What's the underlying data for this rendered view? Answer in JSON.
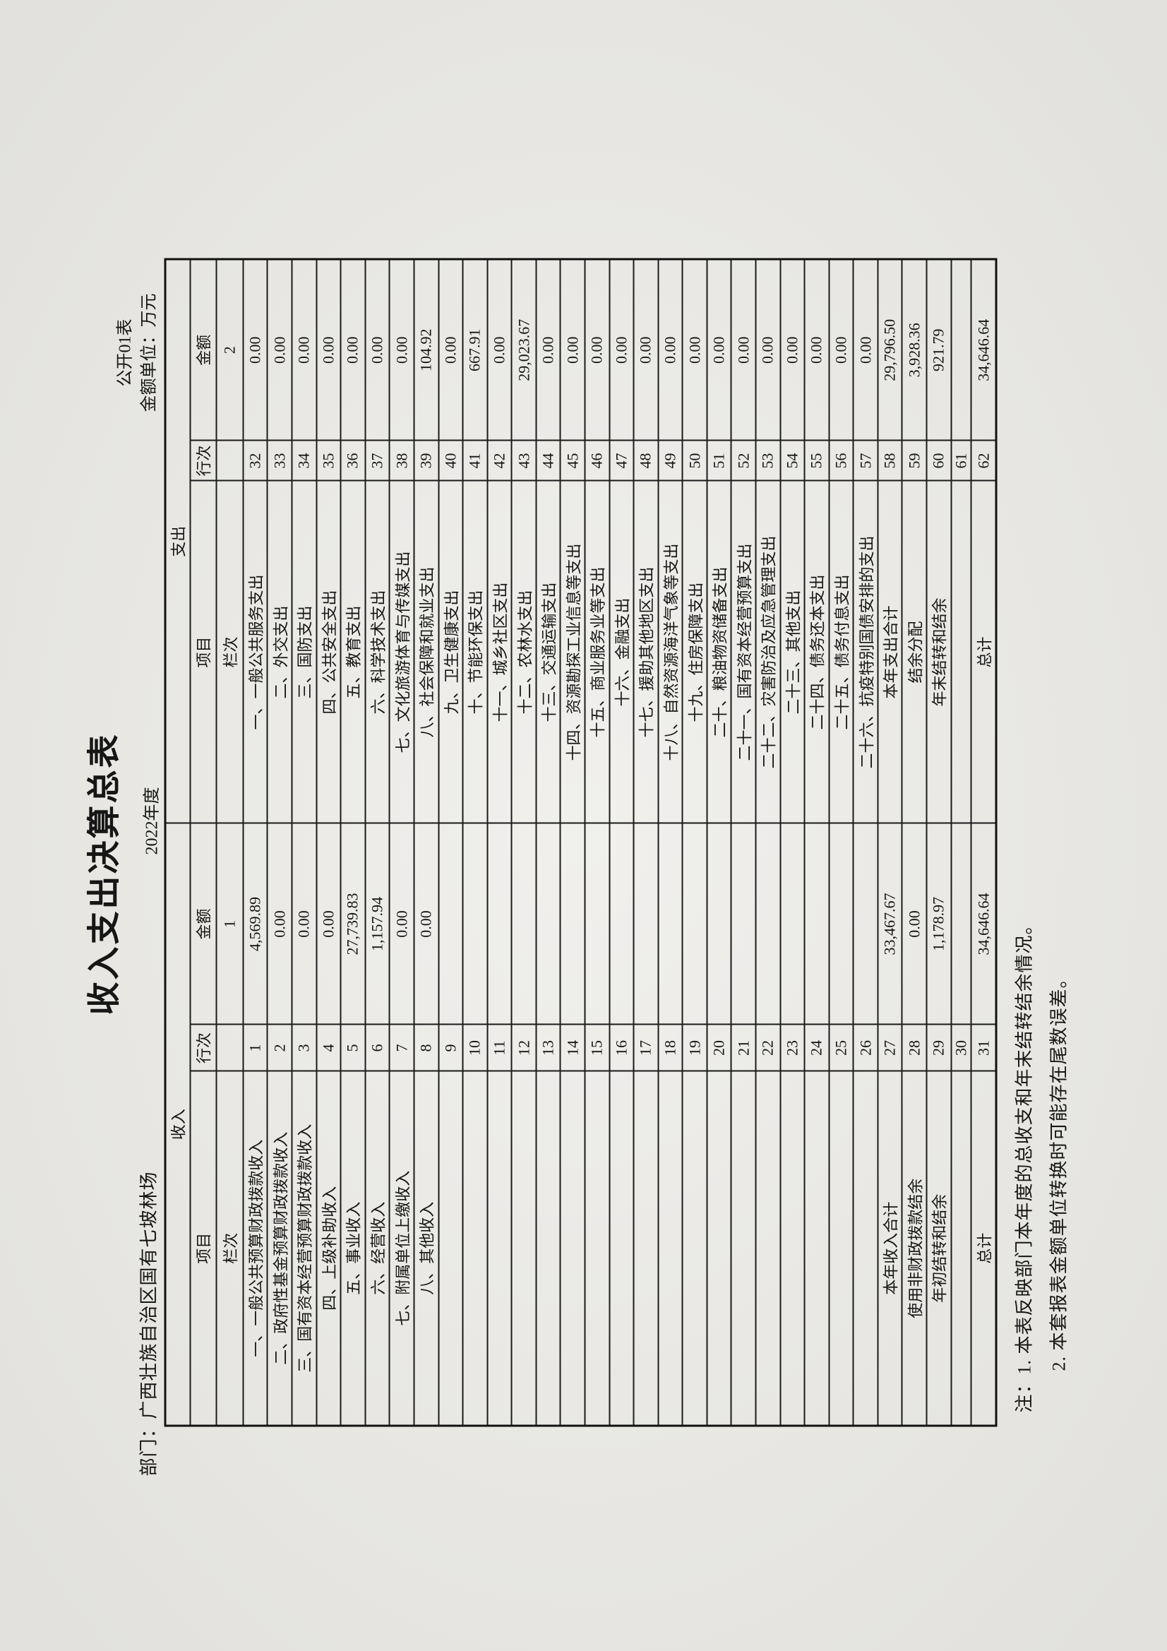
{
  "page": {
    "title": "收入支出决算总表",
    "table_code": "公开01表",
    "unit_label": "金额单位：万元",
    "department": "部门：广西壮族自治区国有七坡林场",
    "year": "2022年度",
    "notes": {
      "line1": "注：1. 本表反映部门本年度的总收支和年末结转结余情况。",
      "line2": "2. 本套报表金额单位转换时可能存在尾数误差。"
    }
  },
  "table": {
    "header": {
      "revenue": "收入",
      "expenditure": "支出",
      "item": "项目",
      "row_no": "行次",
      "amount": "金额",
      "col_index_label": "栏次",
      "revenue_amount_col_no": "1",
      "expenditure_amount_col_no": "2"
    },
    "rows": [
      {
        "revenue_item": "一、一般公共预算财政拨款收入",
        "revenue_row_no": "1",
        "revenue_amount": "4,569.89",
        "expenditure_item": "一、一般公共服务支出",
        "expenditure_row_no": "32",
        "expenditure_amount": "0.00"
      },
      {
        "revenue_item": "二、政府性基金预算财政拨款收入",
        "revenue_row_no": "2",
        "revenue_amount": "0.00",
        "expenditure_item": "二、外交支出",
        "expenditure_row_no": "33",
        "expenditure_amount": "0.00"
      },
      {
        "revenue_item": "三、国有资本经营预算财政拨款收入",
        "revenue_row_no": "3",
        "revenue_amount": "0.00",
        "expenditure_item": "三、国防支出",
        "expenditure_row_no": "34",
        "expenditure_amount": "0.00"
      },
      {
        "revenue_item": "四、上级补助收入",
        "revenue_row_no": "4",
        "revenue_amount": "0.00",
        "expenditure_item": "四、公共安全支出",
        "expenditure_row_no": "35",
        "expenditure_amount": "0.00"
      },
      {
        "revenue_item": "五、事业收入",
        "revenue_row_no": "5",
        "revenue_amount": "27,739.83",
        "expenditure_item": "五、教育支出",
        "expenditure_row_no": "36",
        "expenditure_amount": "0.00"
      },
      {
        "revenue_item": "六、经营收入",
        "revenue_row_no": "6",
        "revenue_amount": "1,157.94",
        "expenditure_item": "六、科学技术支出",
        "expenditure_row_no": "37",
        "expenditure_amount": "0.00"
      },
      {
        "revenue_item": "七、附属单位上缴收入",
        "revenue_row_no": "7",
        "revenue_amount": "0.00",
        "expenditure_item": "七、文化旅游体育与传媒支出",
        "expenditure_row_no": "38",
        "expenditure_amount": "0.00"
      },
      {
        "revenue_item": "八、其他收入",
        "revenue_row_no": "8",
        "revenue_amount": "0.00",
        "expenditure_item": "八、社会保障和就业支出",
        "expenditure_row_no": "39",
        "expenditure_amount": "104.92"
      },
      {
        "revenue_item": "",
        "revenue_row_no": "9",
        "revenue_amount": "",
        "expenditure_item": "九、卫生健康支出",
        "expenditure_row_no": "40",
        "expenditure_amount": "0.00"
      },
      {
        "revenue_item": "",
        "revenue_row_no": "10",
        "revenue_amount": "",
        "expenditure_item": "十、节能环保支出",
        "expenditure_row_no": "41",
        "expenditure_amount": "667.91"
      },
      {
        "revenue_item": "",
        "revenue_row_no": "11",
        "revenue_amount": "",
        "expenditure_item": "十一、城乡社区支出",
        "expenditure_row_no": "42",
        "expenditure_amount": "0.00"
      },
      {
        "revenue_item": "",
        "revenue_row_no": "12",
        "revenue_amount": "",
        "expenditure_item": "十二、农林水支出",
        "expenditure_row_no": "43",
        "expenditure_amount": "29,023.67"
      },
      {
        "revenue_item": "",
        "revenue_row_no": "13",
        "revenue_amount": "",
        "expenditure_item": "十三、交通运输支出",
        "expenditure_row_no": "44",
        "expenditure_amount": "0.00"
      },
      {
        "revenue_item": "",
        "revenue_row_no": "14",
        "revenue_amount": "",
        "expenditure_item": "十四、资源勘探工业信息等支出",
        "expenditure_row_no": "45",
        "expenditure_amount": "0.00"
      },
      {
        "revenue_item": "",
        "revenue_row_no": "15",
        "revenue_amount": "",
        "expenditure_item": "十五、商业服务业等支出",
        "expenditure_row_no": "46",
        "expenditure_amount": "0.00"
      },
      {
        "revenue_item": "",
        "revenue_row_no": "16",
        "revenue_amount": "",
        "expenditure_item": "十六、金融支出",
        "expenditure_row_no": "47",
        "expenditure_amount": "0.00"
      },
      {
        "revenue_item": "",
        "revenue_row_no": "17",
        "revenue_amount": "",
        "expenditure_item": "十七、援助其他地区支出",
        "expenditure_row_no": "48",
        "expenditure_amount": "0.00"
      },
      {
        "revenue_item": "",
        "revenue_row_no": "18",
        "revenue_amount": "",
        "expenditure_item": "十八、自然资源海洋气象等支出",
        "expenditure_row_no": "49",
        "expenditure_amount": "0.00"
      },
      {
        "revenue_item": "",
        "revenue_row_no": "19",
        "revenue_amount": "",
        "expenditure_item": "十九、住房保障支出",
        "expenditure_row_no": "50",
        "expenditure_amount": "0.00"
      },
      {
        "revenue_item": "",
        "revenue_row_no": "20",
        "revenue_amount": "",
        "expenditure_item": "二十、粮油物资储备支出",
        "expenditure_row_no": "51",
        "expenditure_amount": "0.00"
      },
      {
        "revenue_item": "",
        "revenue_row_no": "21",
        "revenue_amount": "",
        "expenditure_item": "二十一、国有资本经营预算支出",
        "expenditure_row_no": "52",
        "expenditure_amount": "0.00"
      },
      {
        "revenue_item": "",
        "revenue_row_no": "22",
        "revenue_amount": "",
        "expenditure_item": "二十二、灾害防治及应急管理支出",
        "expenditure_row_no": "53",
        "expenditure_amount": "0.00"
      },
      {
        "revenue_item": "",
        "revenue_row_no": "23",
        "revenue_amount": "",
        "expenditure_item": "二十三、其他支出",
        "expenditure_row_no": "54",
        "expenditure_amount": "0.00"
      },
      {
        "revenue_item": "",
        "revenue_row_no": "24",
        "revenue_amount": "",
        "expenditure_item": "二十四、债务还本支出",
        "expenditure_row_no": "55",
        "expenditure_amount": "0.00"
      },
      {
        "revenue_item": "",
        "revenue_row_no": "25",
        "revenue_amount": "",
        "expenditure_item": "二十五、债务付息支出",
        "expenditure_row_no": "56",
        "expenditure_amount": "0.00"
      },
      {
        "revenue_item": "",
        "revenue_row_no": "26",
        "revenue_amount": "",
        "expenditure_item": "二十六、抗疫特别国债安排的支出",
        "expenditure_row_no": "57",
        "expenditure_amount": "0.00"
      },
      {
        "revenue_item": "本年收入合计",
        "revenue_row_no": "27",
        "revenue_amount": "33,467.67",
        "expenditure_item": "本年支出合计",
        "expenditure_row_no": "58",
        "expenditure_amount": "29,796.50"
      },
      {
        "revenue_item": "使用非财政拨款结余",
        "revenue_row_no": "28",
        "revenue_amount": "0.00",
        "expenditure_item": "结余分配",
        "expenditure_row_no": "59",
        "expenditure_amount": "3,928.36"
      },
      {
        "revenue_item": "年初结转和结余",
        "revenue_row_no": "29",
        "revenue_amount": "1,178.97",
        "expenditure_item": "年末结转和结余",
        "expenditure_row_no": "60",
        "expenditure_amount": "921.79"
      },
      {
        "revenue_item": "",
        "revenue_row_no": "30",
        "revenue_amount": "",
        "expenditure_item": "",
        "expenditure_row_no": "61",
        "expenditure_amount": ""
      },
      {
        "revenue_item": "总计",
        "revenue_row_no": "31",
        "revenue_amount": "34,646.64",
        "expenditure_item": "总计",
        "expenditure_row_no": "62",
        "expenditure_amount": "34,646.64"
      }
    ]
  }
}
